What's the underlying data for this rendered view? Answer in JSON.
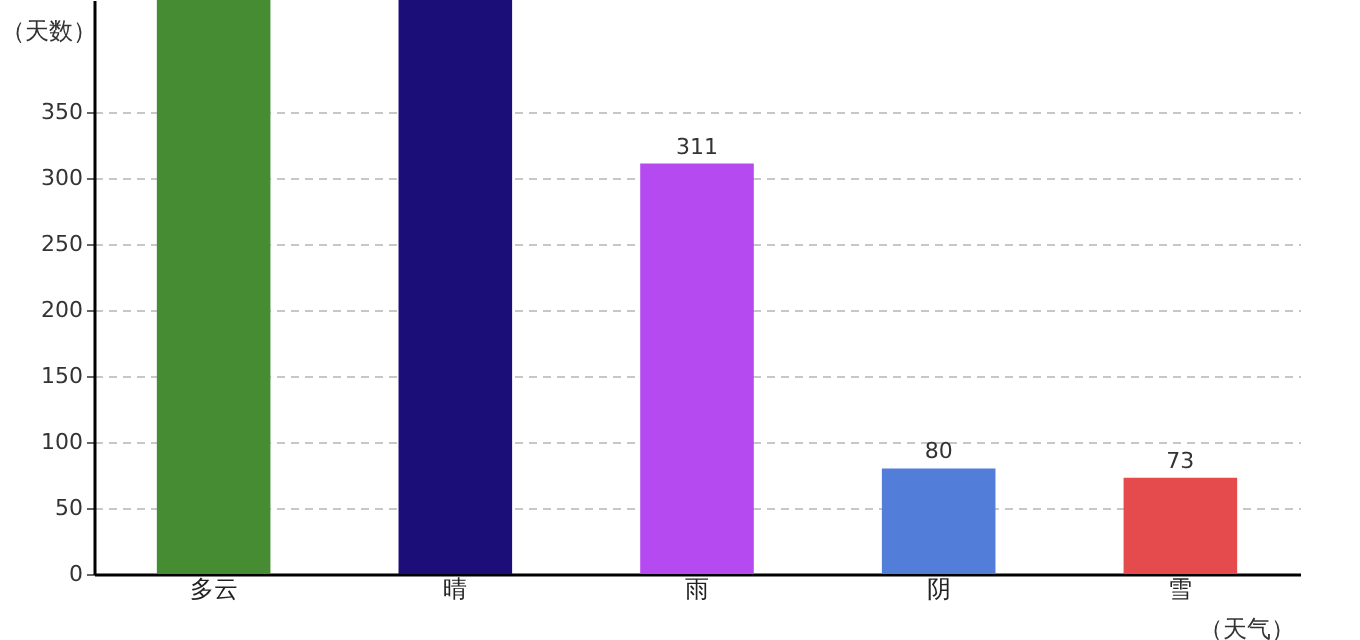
{
  "chart_data": {
    "type": "bar",
    "xlabel": "（天气）",
    "ylabel": "（天数）",
    "categories": [
      "多云",
      "晴",
      "雨",
      "阴",
      "雪"
    ],
    "values": [
      435,
      435,
      311,
      80,
      73
    ],
    "value_labels": [
      null,
      null,
      "311",
      "80",
      "73"
    ],
    "colors": [
      "#458c32",
      "#1c0e78",
      "#b44af0",
      "#527dd9",
      "#e54a4d"
    ],
    "ylim": [
      0,
      435
    ],
    "yticks": [
      0,
      50,
      100,
      150,
      200,
      250,
      300,
      350
    ],
    "grid": "y"
  }
}
